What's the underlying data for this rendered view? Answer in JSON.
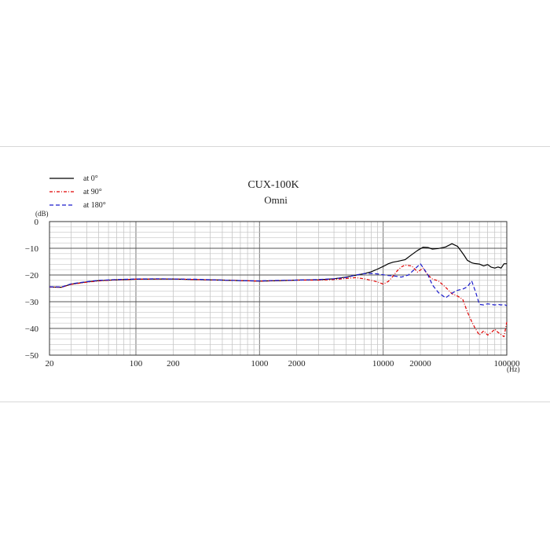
{
  "chart_data": {
    "type": "line",
    "title": "CUX-100K",
    "subtitle": "Omni",
    "xlabel": "",
    "ylabel": "",
    "x_unit": "(Hz)",
    "y_unit": "(dB)",
    "x_scale": "log",
    "xlim": [
      20,
      100000
    ],
    "ylim": [
      -50,
      0
    ],
    "x_ticks": [
      {
        "value": 20,
        "label": "20"
      },
      {
        "value": 100,
        "label": "100"
      },
      {
        "value": 200,
        "label": "200"
      },
      {
        "value": 1000,
        "label": "1000"
      },
      {
        "value": 2000,
        "label": "2000"
      },
      {
        "value": 10000,
        "label": "10000"
      },
      {
        "value": 20000,
        "label": "20000"
      },
      {
        "value": 100000,
        "label": "100000"
      }
    ],
    "y_ticks": [
      {
        "value": 0,
        "label": "0"
      },
      {
        "value": -10,
        "label": "−10"
      },
      {
        "value": -20,
        "label": "−20"
      },
      {
        "value": -30,
        "label": "−30"
      },
      {
        "value": -40,
        "label": "−40"
      },
      {
        "value": -50,
        "label": "−50"
      }
    ],
    "grid": true,
    "legend_position": "top-left",
    "series": [
      {
        "name": "at 0°",
        "color": "#000000",
        "dash": "solid",
        "x": [
          20,
          25,
          30,
          40,
          50,
          70,
          100,
          150,
          200,
          300,
          500,
          700,
          1000,
          1500,
          2000,
          3000,
          4000,
          5000,
          6000,
          7000,
          8000,
          9000,
          10000,
          11000,
          12000,
          13000,
          14000,
          15000,
          17000,
          19000,
          21000,
          23000,
          25000,
          28000,
          32000,
          36000,
          40000,
          42000,
          45000,
          48000,
          52000,
          55000,
          60000,
          65000,
          70000,
          75000,
          80000,
          85000,
          90000,
          95000,
          100000
        ],
        "y": [
          -24.5,
          -24.6,
          -23.4,
          -22.6,
          -22.1,
          -21.8,
          -21.6,
          -21.5,
          -21.5,
          -21.7,
          -21.9,
          -22.1,
          -22.3,
          -22.1,
          -21.9,
          -21.8,
          -21.4,
          -20.8,
          -20.1,
          -19.5,
          -18.8,
          -17.8,
          -16.8,
          -15.8,
          -15.2,
          -14.9,
          -14.6,
          -14.3,
          -12.4,
          -10.8,
          -9.6,
          -9.7,
          -10.3,
          -10.1,
          -9.5,
          -8.3,
          -9.3,
          -10.6,
          -12.5,
          -14.5,
          -15.4,
          -15.7,
          -15.9,
          -16.6,
          -16.1,
          -17.1,
          -17.4,
          -17.0,
          -17.4,
          -15.8,
          -15.8
        ]
      },
      {
        "name": "at 90°",
        "color": "#e00000",
        "dash": "dashdot",
        "x": [
          20,
          25,
          30,
          40,
          50,
          70,
          100,
          150,
          200,
          300,
          500,
          700,
          1000,
          1500,
          2000,
          3000,
          4000,
          5000,
          6000,
          7000,
          8000,
          9000,
          10000,
          11000,
          12000,
          13000,
          14000,
          15000,
          17000,
          19000,
          21000,
          23000,
          25000,
          28000,
          32000,
          36000,
          40000,
          44000,
          48000,
          52000,
          55000,
          60000,
          65000,
          70000,
          75000,
          80000,
          85000,
          90000,
          95000,
          100000
        ],
        "y": [
          -24.5,
          -24.6,
          -23.5,
          -22.7,
          -22.2,
          -21.8,
          -21.6,
          -21.5,
          -21.5,
          -21.7,
          -21.9,
          -22.1,
          -22.3,
          -22.1,
          -21.9,
          -21.9,
          -21.7,
          -21.3,
          -21.0,
          -21.4,
          -22.0,
          -22.6,
          -23.4,
          -22.4,
          -20.5,
          -18.4,
          -17.0,
          -16.3,
          -16.6,
          -18.9,
          -17.4,
          -20.0,
          -21.5,
          -22.2,
          -24.6,
          -27.0,
          -27.9,
          -29.1,
          -33.8,
          -37.4,
          -39.6,
          -42.5,
          -40.9,
          -42.5,
          -41.5,
          -40.3,
          -41.5,
          -42.3,
          -43.1,
          -37.6
        ]
      },
      {
        "name": "at 180°",
        "color": "#1a1acc",
        "dash": "dashed",
        "x": [
          20,
          25,
          30,
          40,
          50,
          70,
          100,
          150,
          200,
          300,
          500,
          700,
          1000,
          1500,
          2000,
          3000,
          4000,
          5000,
          6000,
          7000,
          8000,
          9000,
          10000,
          11000,
          12000,
          14000,
          16000,
          18000,
          20000,
          21000,
          23000,
          25000,
          28000,
          32000,
          36000,
          40000,
          44000,
          48000,
          52000,
          56000,
          60000,
          65000,
          70000,
          75000,
          80000,
          85000,
          90000,
          95000,
          100000
        ],
        "y": [
          -24.4,
          -24.5,
          -23.3,
          -22.5,
          -22.0,
          -21.7,
          -21.5,
          -21.4,
          -21.5,
          -21.6,
          -21.9,
          -22.1,
          -22.2,
          -22.0,
          -21.9,
          -21.7,
          -21.4,
          -20.9,
          -20.0,
          -19.5,
          -19.4,
          -19.6,
          -19.9,
          -20.2,
          -20.3,
          -20.8,
          -20.0,
          -17.8,
          -15.8,
          -17.2,
          -19.9,
          -23.7,
          -26.6,
          -28.6,
          -26.8,
          -25.7,
          -25.3,
          -24.4,
          -22.2,
          -26.4,
          -31.0,
          -31.2,
          -30.8,
          -31.0,
          -31.2,
          -31.0,
          -31.2,
          -31.0,
          -31.5
        ]
      }
    ]
  }
}
